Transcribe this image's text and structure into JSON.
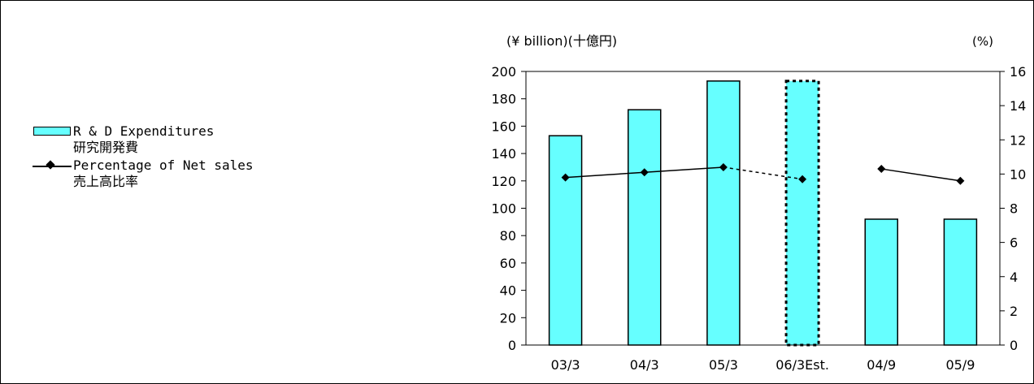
{
  "chart_data": {
    "type": "bar",
    "categories": [
      "03/3",
      "04/3",
      "05/3",
      "06/3Est.",
      "04/9",
      "05/9"
    ],
    "series": [
      {
        "name": "R & D Expenditures",
        "name_ja": "研究開発費",
        "type": "bar",
        "axis": "left",
        "values": [
          153,
          172,
          193,
          193,
          92,
          92
        ],
        "estimated": [
          false,
          false,
          false,
          true,
          false,
          false
        ],
        "color": "#66ffff"
      },
      {
        "name": "Percentage of Net sales",
        "name_ja": "売上高比率",
        "type": "line",
        "axis": "right",
        "values": [
          9.8,
          10.1,
          10.4,
          9.7,
          10.3,
          9.6
        ],
        "segments": [
          [
            0,
            1,
            "solid"
          ],
          [
            1,
            2,
            "solid"
          ],
          [
            2,
            3,
            "dashed"
          ],
          [
            4,
            5,
            "solid"
          ]
        ],
        "color": "#000000"
      }
    ],
    "ylabel_left": "(¥ billion)(十億円)",
    "ylabel_right": "(%)",
    "ylim_left": [
      0,
      200
    ],
    "yticks_left": [
      0,
      20,
      40,
      60,
      80,
      100,
      120,
      140,
      160,
      180,
      200
    ],
    "ylim_right": [
      0,
      16
    ],
    "yticks_right": [
      0,
      2,
      4,
      6,
      8,
      10,
      12,
      14,
      16
    ],
    "grid": false,
    "legend_position": "left"
  }
}
